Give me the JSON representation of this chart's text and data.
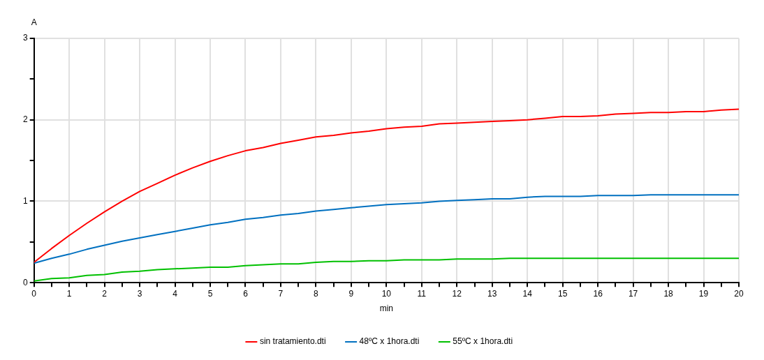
{
  "chart_data": {
    "type": "line",
    "xlabel": "min",
    "ylabel": "A",
    "x": [
      0,
      0.5,
      1,
      1.5,
      2,
      2.5,
      3,
      3.5,
      4,
      4.5,
      5,
      5.5,
      6,
      6.5,
      7,
      7.5,
      8,
      8.5,
      9,
      9.5,
      10,
      10.5,
      11,
      11.5,
      12,
      12.5,
      13,
      13.5,
      14,
      14.5,
      15,
      15.5,
      16,
      16.5,
      17,
      17.5,
      18,
      18.5,
      19,
      19.5,
      20
    ],
    "series": [
      {
        "name": "sin tratamiento.dti",
        "color": "#ff0000",
        "values": [
          0.25,
          0.42,
          0.58,
          0.73,
          0.87,
          1.0,
          1.12,
          1.22,
          1.32,
          1.41,
          1.49,
          1.56,
          1.62,
          1.66,
          1.71,
          1.75,
          1.79,
          1.81,
          1.84,
          1.86,
          1.89,
          1.91,
          1.92,
          1.95,
          1.96,
          1.97,
          1.98,
          1.99,
          2.0,
          2.02,
          2.04,
          2.04,
          2.05,
          2.07,
          2.08,
          2.09,
          2.09,
          2.1,
          2.1,
          2.12,
          2.13
        ]
      },
      {
        "name": "48ºC x 1hora.dti",
        "color": "#0070c0",
        "values": [
          0.24,
          0.3,
          0.35,
          0.41,
          0.46,
          0.51,
          0.55,
          0.59,
          0.63,
          0.67,
          0.71,
          0.74,
          0.78,
          0.8,
          0.83,
          0.85,
          0.88,
          0.9,
          0.92,
          0.94,
          0.96,
          0.97,
          0.98,
          1.0,
          1.01,
          1.02,
          1.03,
          1.03,
          1.05,
          1.06,
          1.06,
          1.06,
          1.07,
          1.07,
          1.07,
          1.08,
          1.08,
          1.08,
          1.08,
          1.08,
          1.08
        ]
      },
      {
        "name": "55ºC x 1hora.dti",
        "color": "#00c000",
        "values": [
          0.02,
          0.05,
          0.06,
          0.09,
          0.1,
          0.13,
          0.14,
          0.16,
          0.17,
          0.18,
          0.19,
          0.19,
          0.21,
          0.22,
          0.23,
          0.23,
          0.25,
          0.26,
          0.26,
          0.27,
          0.27,
          0.28,
          0.28,
          0.28,
          0.29,
          0.29,
          0.29,
          0.3,
          0.3,
          0.3,
          0.3,
          0.3,
          0.3,
          0.3,
          0.3,
          0.3,
          0.3,
          0.3,
          0.3,
          0.3,
          0.3
        ]
      }
    ],
    "xlim": [
      0,
      20
    ],
    "xticks": [
      0,
      {
        "value": 0.5,
        "label": null
      },
      1,
      {
        "value": 1.5,
        "label": null
      },
      2,
      {
        "value": 2.5,
        "label": null
      },
      3,
      {
        "value": 3.5,
        "label": null
      },
      4,
      {
        "value": 4.5,
        "label": null
      },
      5,
      {
        "value": 5.5,
        "label": null
      },
      6,
      {
        "value": 6.5,
        "label": null
      },
      7,
      {
        "value": 7.5,
        "label": null
      },
      8,
      {
        "value": 8.5,
        "label": null
      },
      9,
      {
        "value": 9.5,
        "label": null
      },
      10,
      {
        "value": 10.5,
        "label": null
      },
      11,
      {
        "value": 11.5,
        "label": null
      },
      12,
      {
        "value": 12.5,
        "label": null
      },
      13,
      {
        "value": 13.5,
        "label": null
      },
      14,
      {
        "value": 14.5,
        "label": null
      },
      15,
      {
        "value": 15.5,
        "label": null
      },
      16,
      {
        "value": 16.5,
        "label": null
      },
      17,
      {
        "value": 17.5,
        "label": null
      },
      18,
      {
        "value": 18.5,
        "label": null
      },
      19,
      {
        "value": 19.5,
        "label": null
      },
      20
    ],
    "ylim": [
      0,
      3
    ],
    "yticks": [
      0,
      {
        "value": 0.5,
        "label": null
      },
      1,
      {
        "value": 1.5,
        "label": null
      },
      2,
      {
        "value": 2.5,
        "label": null
      },
      3
    ],
    "grid": true,
    "legend": "bottom",
    "marker": "none",
    "line_style": "solid"
  }
}
